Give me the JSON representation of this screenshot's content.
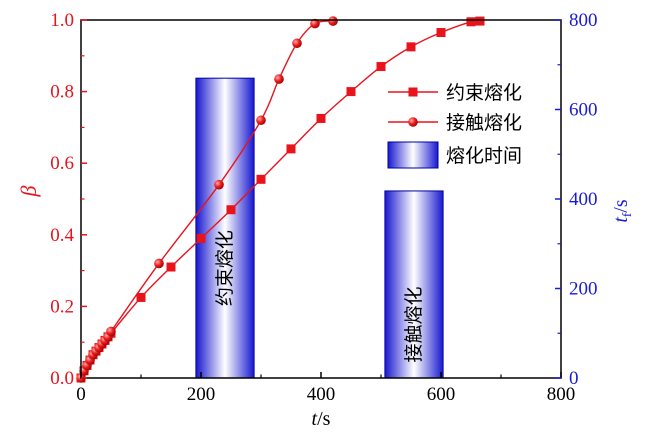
{
  "chart_data": {
    "type": "line",
    "x_axis": {
      "label_italic": "t",
      "label_rest": "/s",
      "range": [
        0,
        800
      ],
      "ticks": [
        "0",
        "200",
        "400",
        "600",
        "800"
      ]
    },
    "y_left": {
      "label": "β",
      "range": [
        0.0,
        1.0
      ],
      "ticks": [
        "0.0",
        "0.2",
        "0.4",
        "0.6",
        "0.8",
        "1.0"
      ],
      "color": "#e8131b"
    },
    "y_right": {
      "label_italic": "t",
      "label_sub": "f",
      "label_rest": "/s",
      "range": [
        0,
        800
      ],
      "ticks": [
        "0",
        "200",
        "400",
        "600",
        "800"
      ],
      "color": "#1a1ad9"
    },
    "series": [
      {
        "name": "约束熔化",
        "marker": "square",
        "color": "#e8131b",
        "x": [
          0,
          5,
          10,
          15,
          20,
          25,
          30,
          35,
          40,
          45,
          50,
          100,
          150,
          200,
          250,
          300,
          350,
          400,
          450,
          500,
          550,
          600,
          650,
          665
        ],
        "y": [
          0.0,
          0.02,
          0.035,
          0.05,
          0.065,
          0.075,
          0.085,
          0.095,
          0.105,
          0.115,
          0.125,
          0.225,
          0.31,
          0.39,
          0.47,
          0.555,
          0.64,
          0.725,
          0.8,
          0.87,
          0.925,
          0.965,
          0.995,
          0.997
        ]
      },
      {
        "name": "接触熔化",
        "marker": "sphere",
        "color": "#e8131b",
        "x": [
          0,
          5,
          10,
          15,
          20,
          25,
          30,
          35,
          40,
          45,
          50,
          130,
          230,
          300,
          330,
          360,
          390,
          420
        ],
        "y": [
          0.0,
          0.02,
          0.035,
          0.05,
          0.065,
          0.075,
          0.085,
          0.095,
          0.105,
          0.115,
          0.13,
          0.32,
          0.54,
          0.72,
          0.835,
          0.935,
          0.99,
          0.997
        ]
      }
    ],
    "bars": {
      "name": "熔化时间",
      "axis": "right",
      "items": [
        {
          "x": 240,
          "value": 670,
          "label": "约束熔化"
        },
        {
          "x": 555,
          "value": 418,
          "label": "接触熔化"
        }
      ],
      "width": 97
    },
    "legend": {
      "position": "top-right",
      "entries": [
        "约束熔化",
        "接触熔化",
        "熔化时间"
      ]
    }
  }
}
